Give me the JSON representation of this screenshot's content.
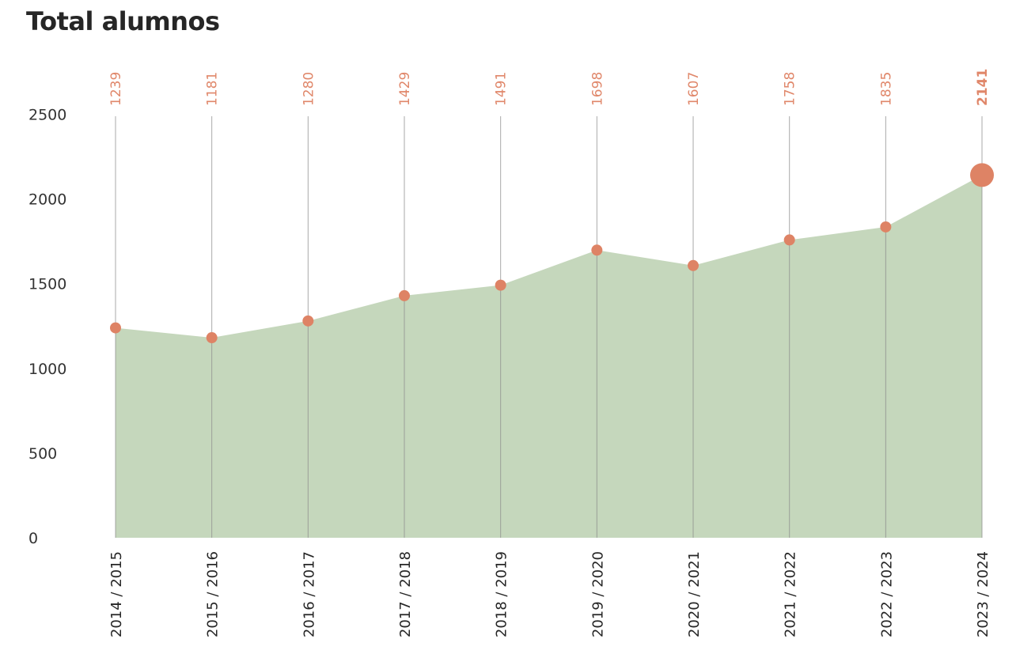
{
  "chart_data": {
    "type": "area",
    "title": "Total alumnos",
    "xlabel": "",
    "ylabel": "",
    "categories": [
      "2014 / 2015",
      "2015 / 2016",
      "2016 / 2017",
      "2017 / 2018",
      "2018 / 2019",
      "2019 / 2020",
      "2020 / 2021",
      "2021 / 2022",
      "2022 / 2023",
      "2023 / 2024"
    ],
    "values": [
      1239,
      1181,
      1280,
      1429,
      1491,
      1698,
      1607,
      1758,
      1835,
      2141
    ],
    "ylim": [
      0,
      2500
    ],
    "yticks": [
      0,
      500,
      1000,
      1500,
      2000,
      2500
    ],
    "grid": false,
    "highlight_last": true,
    "colors": {
      "area": "#c5d7bc",
      "marker": "#de8365",
      "label": "#e0876a",
      "drop_line": "#8c8c8c"
    }
  }
}
